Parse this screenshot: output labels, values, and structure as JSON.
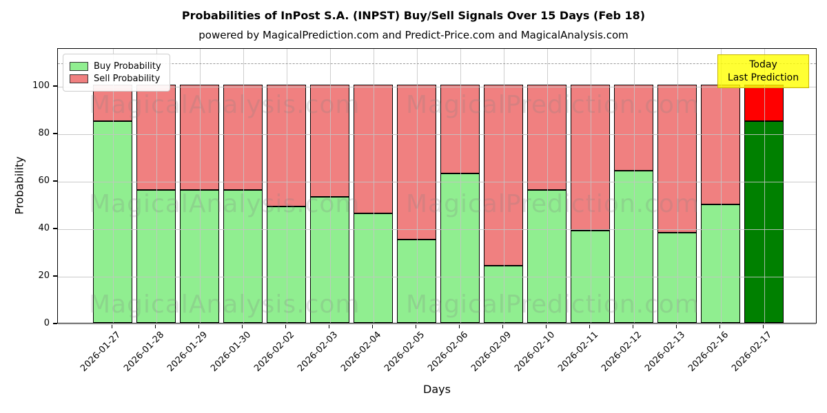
{
  "title": "Probabilities of InPost S.A. (INPST) Buy/Sell Signals Over 15 Days (Feb 18)",
  "subtitle": "powered by MagicalPrediction.com and Predict-Price.com and MagicalAnalysis.com",
  "watermark": {
    "left_text": "MagicalAnalysis.com",
    "right_text": "MagicalPrediction.com"
  },
  "annotation_box": {
    "line1": "Today",
    "line2": "Last Prediction",
    "bg_color": "#ffff00",
    "border_color": "#c8b400"
  },
  "colors": {
    "buy": "#90ee90",
    "sell": "#f08080",
    "buy_today": "#008000",
    "sell_today": "#ff0000",
    "bar_edge": "#000000",
    "grid": "#c6c6c6",
    "dashed_line": "#9a9a9a",
    "background": "#ffffff"
  },
  "chart_data": {
    "type": "bar",
    "stacked": true,
    "title": "Probabilities of InPost S.A. (INPST) Buy/Sell Signals Over 15 Days (Feb 18)",
    "xlabel": "Days",
    "ylabel": "Probability",
    "categories": [
      "2026-01-27",
      "2026-01-28",
      "2026-01-29",
      "2026-01-30",
      "2026-02-02",
      "2026-02-03",
      "2026-02-04",
      "2026-02-05",
      "2026-02-06",
      "2026-02-09",
      "2026-02-10",
      "2026-02-11",
      "2026-02-12",
      "2026-02-13",
      "2026-02-16",
      "2026-02-17"
    ],
    "series": [
      {
        "name": "Buy Probability",
        "color": "#90ee90",
        "today_color": "#008000",
        "values": [
          85,
          56,
          56,
          56,
          49,
          53,
          46,
          35,
          63,
          24,
          56,
          39,
          64,
          38,
          50,
          85
        ]
      },
      {
        "name": "Sell Probability",
        "color": "#f08080",
        "today_color": "#ff0000",
        "values": [
          15,
          44,
          44,
          44,
          51,
          47,
          54,
          65,
          37,
          76,
          44,
          61,
          36,
          62,
          50,
          15
        ]
      }
    ],
    "today_index": 15,
    "yticks": [
      0,
      20,
      40,
      60,
      80,
      100
    ],
    "ylim": [
      0,
      116
    ],
    "dashed_line_y": 110,
    "grid": true,
    "legend_position": "upper left"
  }
}
